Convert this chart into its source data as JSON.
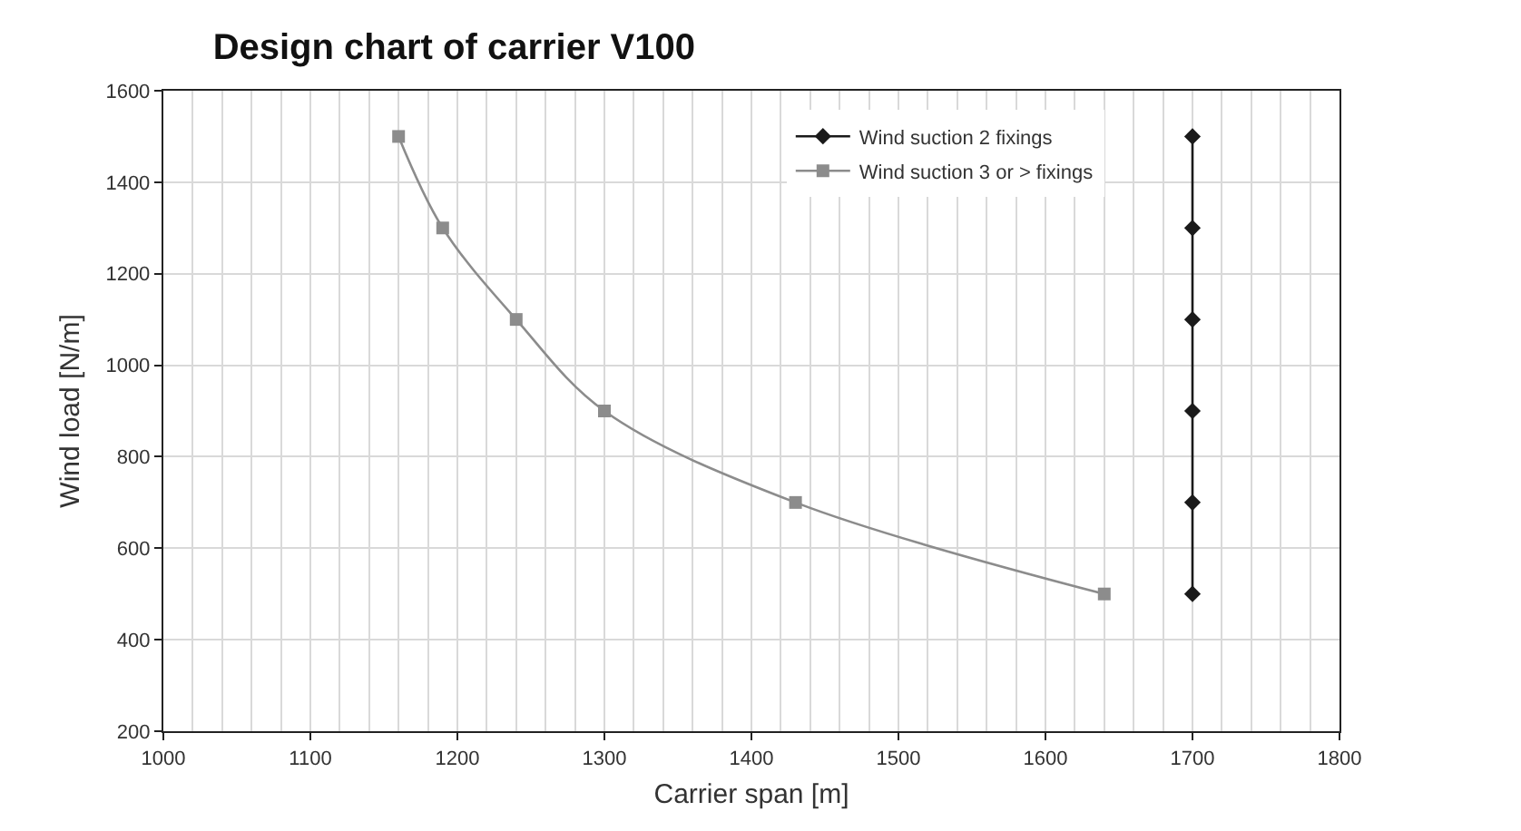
{
  "chart_data": {
    "type": "line",
    "title": "Design chart of carrier V100",
    "xlabel": "Carrier span [m]",
    "ylabel": "Wind load [N/m]",
    "xlim": [
      1000,
      1800
    ],
    "xticks": [
      1000,
      1100,
      1200,
      1300,
      1400,
      1500,
      1600,
      1700,
      1800
    ],
    "ylim": [
      200,
      1600
    ],
    "yticks": [
      200,
      400,
      600,
      800,
      1000,
      1200,
      1400,
      1600
    ],
    "grid": true,
    "legend": "top right",
    "line_style": "solid",
    "series": [
      {
        "name": "Wind suction 2 fixings",
        "color": "#1a1a1a",
        "marker": "diamond",
        "x": [
          1700,
          1700,
          1700,
          1700,
          1700,
          1700
        ],
        "values": [
          1500,
          1300,
          1100,
          900,
          700,
          500
        ]
      },
      {
        "name": "Wind suction 3 or > fixings",
        "color": "#8c8c8c",
        "marker": "square",
        "x": [
          1160,
          1190,
          1240,
          1300,
          1430,
          1640
        ],
        "values": [
          1500,
          1300,
          1100,
          900,
          700,
          500
        ]
      }
    ]
  }
}
